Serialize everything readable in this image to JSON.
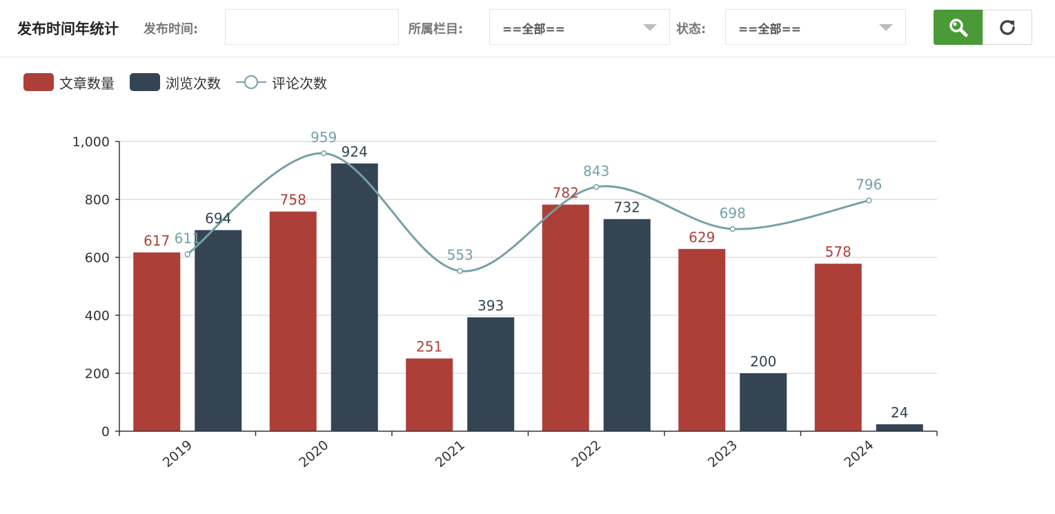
{
  "toolbar": {
    "title": "发布时间年统计",
    "publish_time_label": "发布时间:",
    "publish_time_value": "",
    "column_label": "所属栏目:",
    "column_value": "==全部==",
    "status_label": "状态:",
    "status_value": "==全部==",
    "search_icon": "search-icon",
    "refresh_icon": "refresh-icon"
  },
  "colors": {
    "articles": "#ad3f38",
    "views": "#344453",
    "comments": "#75a0a7",
    "search_button": "#4a9a37"
  },
  "chart_data": {
    "type": "bar",
    "categories": [
      "2019",
      "2020",
      "2021",
      "2022",
      "2023",
      "2024"
    ],
    "series": [
      {
        "name": "文章数量",
        "type": "bar",
        "values": [
          617,
          758,
          251,
          782,
          629,
          578
        ]
      },
      {
        "name": "浏览次数",
        "type": "bar",
        "values": [
          694,
          924,
          393,
          732,
          200,
          24
        ]
      },
      {
        "name": "评论次数",
        "type": "line",
        "smooth": true,
        "values": [
          611,
          959,
          553,
          843,
          698,
          796
        ]
      }
    ],
    "title": "",
    "xlabel": "",
    "ylabel": "",
    "ylim": [
      0,
      1000
    ],
    "yticks": [
      "0",
      "200",
      "400",
      "600",
      "800",
      "1,000"
    ],
    "grid": true,
    "legend": "top-left",
    "data_labels": true
  }
}
